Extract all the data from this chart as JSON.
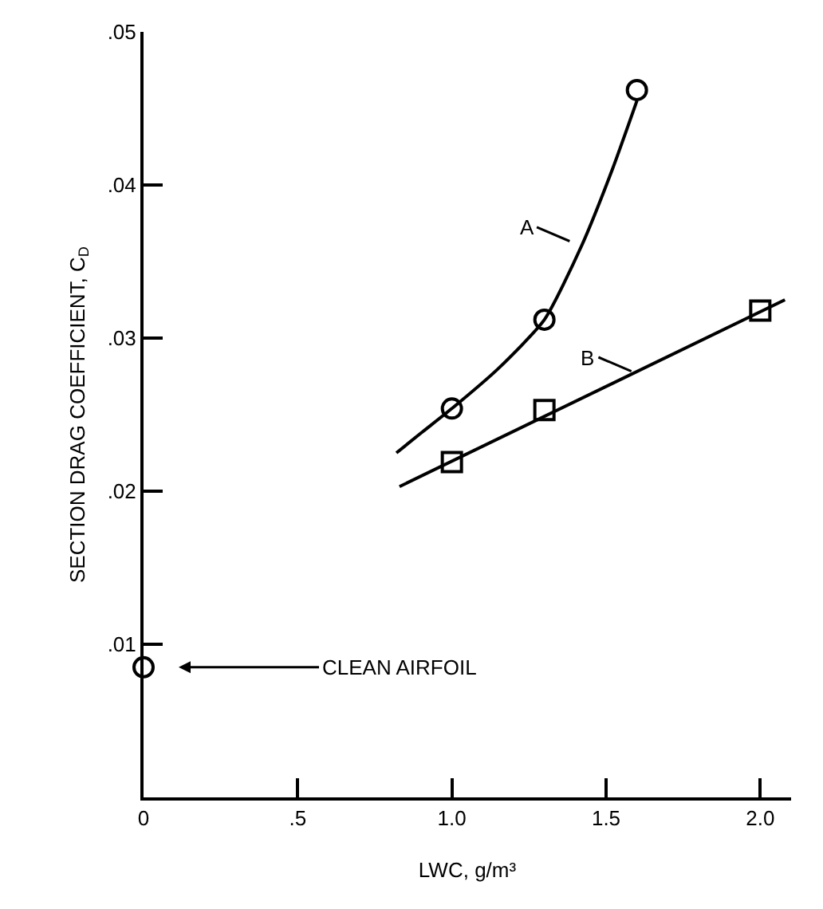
{
  "chart_data": {
    "type": "line",
    "xlabel": "LWC, g/m³",
    "ylabel": "SECTION DRAG COEFFICIENT, C$_{D}$",
    "series": [
      {
        "marker": "none",
        "color": "#000000",
        "x": [
          0.82,
          0.9,
          1.0,
          1.15,
          1.3,
          1.42,
          1.52,
          1.6
        ],
        "values": [
          0.0225,
          0.0238,
          0.0254,
          0.028,
          0.0312,
          0.036,
          0.041,
          0.0455
        ]
      },
      {
        "type": "scatter",
        "marker": "circle",
        "color": "#000000",
        "x": [
          1.0,
          1.3,
          1.6
        ],
        "values": [
          0.0254,
          0.0312,
          0.0462
        ]
      },
      {
        "marker": "none",
        "color": "#000000",
        "x": [
          0.83,
          2.08
        ],
        "values": [
          0.0203,
          0.0325
        ]
      },
      {
        "type": "scatter",
        "marker": "square",
        "color": "#000000",
        "x": [
          1.0,
          1.3,
          2.0
        ],
        "values": [
          0.0219,
          0.0253,
          0.0318
        ]
      },
      {
        "type": "scatter",
        "marker": "circle",
        "color": "#000000",
        "x": [
          0
        ],
        "values": [
          0.0085
        ]
      }
    ],
    "annotations": [
      {
        "text": "A",
        "x": 1.42,
        "y": 0.036
      },
      {
        "text": "B",
        "x": 1.62,
        "y": 0.0275
      },
      {
        "text": "CLEAN AIRFOIL",
        "x": 0,
        "y": 0.0085
      }
    ],
    "xlim": [
      0,
      2.1
    ],
    "xticks": [
      0,
      {
        "value": 0.5,
        "label": ".5"
      },
      {
        "value": 1,
        "label": "1.0"
      },
      {
        "value": 1.5,
        "label": "1.5"
      },
      {
        "value": 2,
        "label": "2.0"
      }
    ],
    "ylim": [
      0,
      0.05
    ],
    "yticks": [
      {
        "value": 0.01,
        "label": ".01"
      },
      {
        "value": 0.02,
        "label": ".02"
      },
      {
        "value": 0.03,
        "label": ".03"
      },
      {
        "value": 0.04,
        "label": ".04"
      },
      {
        "value": 0.05,
        "label": ".05"
      }
    ],
    "grid": false,
    "line_style": "solid"
  }
}
